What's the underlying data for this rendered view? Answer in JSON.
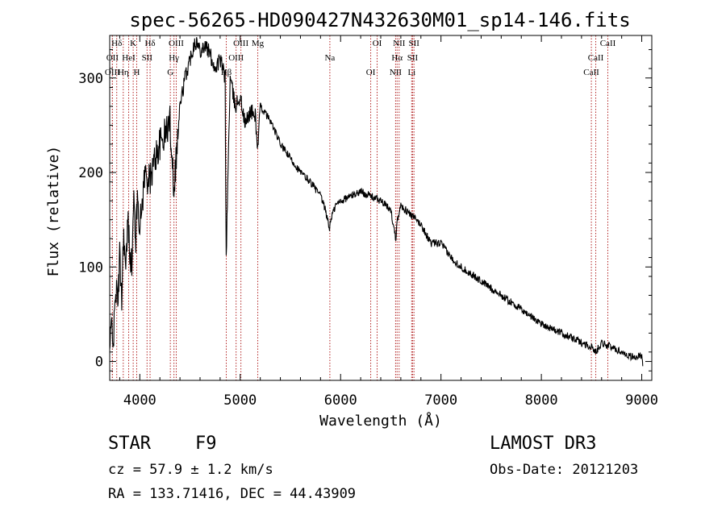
{
  "chart_data": {
    "type": "line",
    "title": "spec-56265-HD090427N432630M01_sp14-146.fits",
    "xlabel": "Wavelength (Å)",
    "ylabel": "Flux (relative)",
    "xlim": [
      3700,
      9100
    ],
    "ylim": [
      -20,
      345
    ],
    "x_ticks": [
      4000,
      5000,
      6000,
      7000,
      8000,
      9000
    ],
    "y_ticks": [
      0,
      100,
      200,
      300
    ],
    "grid": false,
    "series": [
      {
        "name": "spectrum",
        "x": [
          3700,
          3720,
          3740,
          3760,
          3780,
          3800,
          3820,
          3840,
          3860,
          3880,
          3900,
          3920,
          3940,
          3960,
          3980,
          4000,
          4050,
          4100,
          4150,
          4200,
          4250,
          4300,
          4340,
          4400,
          4450,
          4500,
          4550,
          4600,
          4650,
          4700,
          4750,
          4800,
          4850,
          4860,
          4900,
          4950,
          5000,
          5050,
          5100,
          5150,
          5175,
          5200,
          5300,
          5400,
          5500,
          5600,
          5700,
          5800,
          5850,
          5890,
          5900,
          5950,
          6000,
          6100,
          6200,
          6300,
          6400,
          6500,
          6550,
          6563,
          6600,
          6700,
          6800,
          6900,
          7000,
          7100,
          7200,
          7400,
          7600,
          7800,
          8000,
          8200,
          8400,
          8500,
          8542,
          8600,
          8700,
          8800,
          8900,
          9000,
          9010
        ],
        "y": [
          10,
          40,
          25,
          80,
          60,
          110,
          70,
          140,
          90,
          150,
          120,
          100,
          170,
          130,
          180,
          140,
          200,
          190,
          215,
          230,
          240,
          255,
          185,
          270,
          300,
          320,
          340,
          330,
          335,
          325,
          310,
          320,
          300,
          110,
          300,
          270,
          280,
          250,
          265,
          260,
          225,
          270,
          255,
          230,
          215,
          200,
          190,
          175,
          160,
          140,
          150,
          165,
          170,
          175,
          180,
          175,
          170,
          160,
          130,
          150,
          165,
          155,
          145,
          125,
          125,
          110,
          100,
          85,
          70,
          55,
          40,
          30,
          20,
          15,
          10,
          20,
          15,
          10,
          5,
          5,
          -5
        ]
      }
    ],
    "annotations": [
      {
        "label": "Hδ",
        "x": 3770
      },
      {
        "label": "OII",
        "x": 3727
      },
      {
        "label": "OIII",
        "x": 3727
      },
      {
        "label": "K",
        "x": 3934
      },
      {
        "label": "HeI",
        "x": 3889
      },
      {
        "label": "Hη",
        "x": 3835
      },
      {
        "label": "Hδ",
        "x": 4102
      },
      {
        "label": "SII",
        "x": 4072
      },
      {
        "label": "H",
        "x": 3969
      },
      {
        "label": "OIII",
        "x": 4363
      },
      {
        "label": "Hγ",
        "x": 4340
      },
      {
        "label": "G",
        "x": 4304
      },
      {
        "label": "OIII",
        "x": 5007
      },
      {
        "label": "OIII",
        "x": 4959
      },
      {
        "label": "Hβ",
        "x": 4861
      },
      {
        "label": "Mg",
        "x": 5175
      },
      {
        "label": "Na",
        "x": 5893
      },
      {
        "label": "OI",
        "x": 6300
      },
      {
        "label": "OI",
        "x": 6364
      },
      {
        "label": "Hα",
        "x": 6563
      },
      {
        "label": "NII",
        "x": 6548
      },
      {
        "label": "NII",
        "x": 6583
      },
      {
        "label": "SII",
        "x": 6717
      },
      {
        "label": "Li",
        "x": 6708
      },
      {
        "label": "SII",
        "x": 6731
      },
      {
        "label": "CaII",
        "x": 8542
      },
      {
        "label": "CaII",
        "x": 8498
      },
      {
        "label": "CaII",
        "x": 8662
      }
    ]
  },
  "info": {
    "object_class": "STAR",
    "subclass": "F9",
    "survey": "LAMOST DR3",
    "cz": "cz = 57.9 ± 1.2 km/s",
    "obs_date": "Obs-Date: 20121203",
    "coords": "RA = 133.71416, DEC =  44.43909"
  },
  "colors": {
    "spectrum": "#000000",
    "line_marker": "#b22222"
  }
}
